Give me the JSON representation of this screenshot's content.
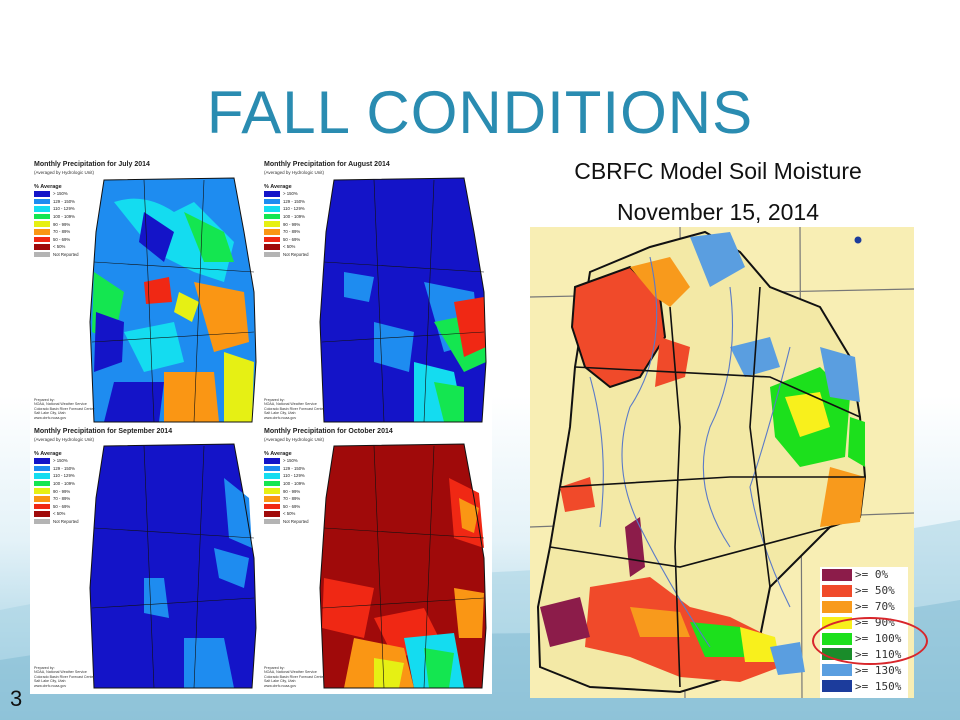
{
  "slide": {
    "title": "FALL CONDITIONS",
    "number": "3",
    "subtitle_line1": "CBRFC Model Soil Moisture",
    "subtitle_line2": "November 15, 2014"
  },
  "precip_panels": [
    {
      "title": "Monthly Precipitation for July 2014",
      "subtitle": "(Averaged by Hydrologic Unit)"
    },
    {
      "title": "Monthly Precipitation for August 2014",
      "subtitle": "(Averaged by Hydrologic Unit)"
    },
    {
      "title": "Monthly Precipitation for September 2014",
      "subtitle": "(Averaged by Hydrologic Unit)"
    },
    {
      "title": "Monthly Precipitation for October 2014",
      "subtitle": "(Averaged by Hydrologic Unit)"
    }
  ],
  "precip_legend": {
    "title": "% Average",
    "items": [
      {
        "label": "> 150%",
        "color": "#1414c8"
      },
      {
        "label": "129 - 150%",
        "color": "#1e8cf0"
      },
      {
        "label": "110 - 129%",
        "color": "#14dcf0"
      },
      {
        "label": "100 - 109%",
        "color": "#14e650"
      },
      {
        "label": "90 - 99%",
        "color": "#e6f014"
      },
      {
        "label": "70 - 89%",
        "color": "#fa9614"
      },
      {
        "label": "50 - 69%",
        "color": "#f02814"
      },
      {
        "label": "< 50%",
        "color": "#a00a0a"
      },
      {
        "label": "Not Reported",
        "color": "#b4b4b4"
      }
    ]
  },
  "precip_credit": {
    "line1": "Prepared by:",
    "line2": "NOAA, National Weather Service",
    "line3": "Colorado Basin River Forecast Center",
    "line4": "Salt Lake City, Utah",
    "line5": "www.cbrfc.noaa.gov"
  },
  "soil_legend": {
    "items": [
      {
        "label": ">= 0%",
        "color": "#8c1c4a"
      },
      {
        "label": ">= 50%",
        "color": "#f04a2a"
      },
      {
        "label": ">= 70%",
        "color": "#f89a1c"
      },
      {
        "label": ">= 90%",
        "color": "#f8f01c"
      },
      {
        "label": ">= 100%",
        "color": "#1ce01c"
      },
      {
        "label": ">= 110%",
        "color": "#1a8c2a"
      },
      {
        "label": ">= 130%",
        "color": "#5a9ee0"
      },
      {
        "label": ">= 150%",
        "color": "#1c3c9c"
      }
    ]
  }
}
